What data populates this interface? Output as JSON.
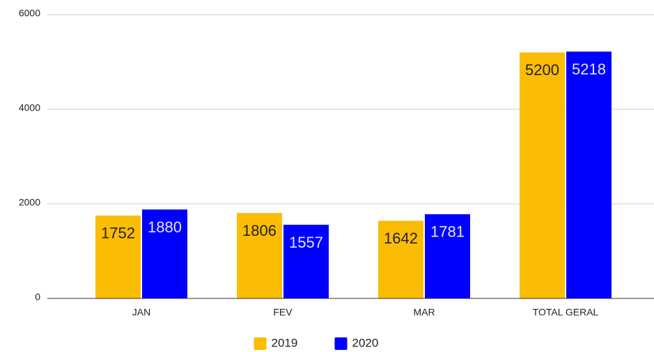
{
  "chart_data": {
    "type": "bar",
    "categories": [
      "JAN",
      "FEV",
      "MAR",
      "TOTAL GERAL"
    ],
    "series": [
      {
        "name": "2019",
        "color": "#fbbc04",
        "label_color": "#222222",
        "values": [
          1752,
          1806,
          1642,
          5200
        ]
      },
      {
        "name": "2020",
        "color": "#0000ff",
        "label_color": "#e6e6ff",
        "values": [
          1880,
          1557,
          1781,
          5218
        ]
      }
    ],
    "ylim": [
      0,
      6000
    ],
    "yticks": [
      0,
      2000,
      4000,
      6000
    ],
    "grid": true,
    "legend": "bottom"
  }
}
